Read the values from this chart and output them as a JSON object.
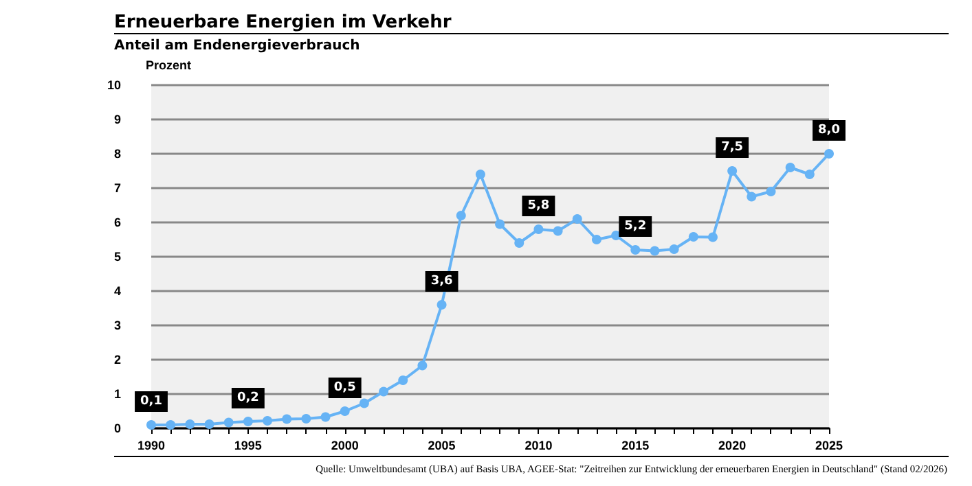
{
  "chart_data": {
    "type": "line",
    "title": "Erneuerbare Energien im Verkehr",
    "subtitle": "Anteil am Endenergieverbrauch",
    "ylabel": "Prozent",
    "x": [
      1990,
      1991,
      1992,
      1993,
      1994,
      1995,
      1996,
      1997,
      1998,
      1999,
      2000,
      2001,
      2002,
      2003,
      2004,
      2005,
      2006,
      2007,
      2008,
      2009,
      2010,
      2011,
      2012,
      2013,
      2014,
      2015,
      2016,
      2017,
      2018,
      2019,
      2020,
      2021,
      2022,
      2023,
      2024,
      2025
    ],
    "series": [
      {
        "color": "#66b3f5",
        "values": [
          0.1,
          0.1,
          0.12,
          0.12,
          0.17,
          0.2,
          0.22,
          0.27,
          0.28,
          0.33,
          0.5,
          0.73,
          1.07,
          1.4,
          1.83,
          3.6,
          6.2,
          7.4,
          5.95,
          5.4,
          5.8,
          5.75,
          6.1,
          5.5,
          5.62,
          5.2,
          5.17,
          5.22,
          5.58,
          5.57,
          7.5,
          6.75,
          6.9,
          7.6,
          7.4,
          8.0
        ],
        "value_labels": [
          "0,1",
          null,
          null,
          null,
          null,
          "0,2",
          null,
          null,
          null,
          null,
          "0,5",
          null,
          null,
          null,
          null,
          "3,6",
          null,
          null,
          null,
          null,
          "5,8",
          null,
          null,
          null,
          null,
          "5,2",
          null,
          null,
          null,
          null,
          "7,5",
          null,
          null,
          null,
          null,
          "8,0"
        ]
      }
    ],
    "xlim": [
      1990,
      2025
    ],
    "xticks": [
      1990,
      {
        "value": 1991,
        "label": null
      },
      {
        "value": 1992,
        "label": null
      },
      {
        "value": 1993,
        "label": null
      },
      {
        "value": 1994,
        "label": null
      },
      1995,
      {
        "value": 1996,
        "label": null
      },
      {
        "value": 1997,
        "label": null
      },
      {
        "value": 1998,
        "label": null
      },
      {
        "value": 1999,
        "label": null
      },
      2000,
      {
        "value": 2001,
        "label": null
      },
      {
        "value": 2002,
        "label": null
      },
      {
        "value": 2003,
        "label": null
      },
      {
        "value": 2004,
        "label": null
      },
      2005,
      {
        "value": 2006,
        "label": null
      },
      {
        "value": 2007,
        "label": null
      },
      {
        "value": 2008,
        "label": null
      },
      {
        "value": 2009,
        "label": null
      },
      2010,
      {
        "value": 2011,
        "label": null
      },
      {
        "value": 2012,
        "label": null
      },
      {
        "value": 2013,
        "label": null
      },
      {
        "value": 2014,
        "label": null
      },
      2015,
      {
        "value": 2016,
        "label": null
      },
      {
        "value": 2017,
        "label": null
      },
      {
        "value": 2018,
        "label": null
      },
      {
        "value": 2019,
        "label": null
      },
      2020,
      {
        "value": 2021,
        "label": null
      },
      {
        "value": 2022,
        "label": null
      },
      {
        "value": 2023,
        "label": null
      },
      {
        "value": 2024,
        "label": null
      },
      2025
    ],
    "ylim": [
      0,
      10
    ],
    "yticks": [
      0,
      1,
      2,
      3,
      4,
      5,
      6,
      7,
      8,
      9,
      10
    ],
    "grid": "y",
    "marker": "circle",
    "line_style": "solid",
    "annotations": [
      "Quelle: Umweltbundesamt (UBA) auf Basis UBA, AGEE-Stat: \"Zeitreihen zur Entwicklung der erneuerbaren Energien in Deutschland\" (Stand 02/2026)"
    ]
  }
}
